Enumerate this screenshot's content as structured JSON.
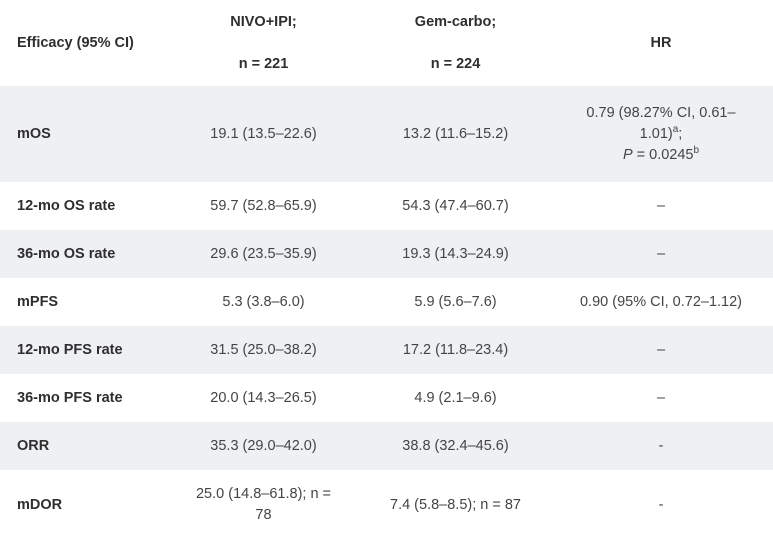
{
  "header": {
    "col0": "Efficacy (95% CI)",
    "col1_line1": "NIVO+IPI;",
    "col1_line2": "n = 221",
    "col2_line1": "Gem-carbo;",
    "col2_line2": "n = 224",
    "col3": "HR"
  },
  "rows": [
    {
      "label": "mOS",
      "nivo": "19.1 (13.5–22.6)",
      "gem": "13.2 (11.6–15.2)",
      "hr_line1": "0.79 (98.27% CI, 0.61–",
      "hr_line2": "1.01)",
      "hr_sup_a": "a",
      "hr_semicolon": ";",
      "hr_p": "P",
      "hr_p_val": " = 0.0245",
      "hr_sup_b": "b"
    },
    {
      "label": "12-mo OS rate",
      "nivo": "59.7 (52.8–65.9)",
      "gem": "54.3 (47.4–60.7)",
      "hr": "–"
    },
    {
      "label": "36-mo OS rate",
      "nivo": "29.6 (23.5–35.9)",
      "gem": "19.3 (14.3–24.9)",
      "hr": "–"
    },
    {
      "label": "mPFS",
      "nivo": "5.3 (3.8–6.0)",
      "gem": "5.9 (5.6–7.6)",
      "hr": "0.90 (95% CI, 0.72–1.12)"
    },
    {
      "label": "12-mo PFS rate",
      "nivo": "31.5 (25.0–38.2)",
      "gem": "17.2 (11.8–23.4)",
      "hr": "–"
    },
    {
      "label": "36-mo PFS rate",
      "nivo": "20.0 (14.3–26.5)",
      "gem": "4.9 (2.1–9.6)",
      "hr": "–"
    },
    {
      "label": "ORR",
      "nivo": "35.3 (29.0–42.0)",
      "gem": "38.8 (32.4–45.6)",
      "hr": "-"
    },
    {
      "label": "mDOR",
      "nivo_line1": "25.0 (14.8–61.8); n =",
      "nivo_line2": "78",
      "gem": "7.4 (5.8–8.5); n = 87",
      "hr": "-"
    }
  ]
}
